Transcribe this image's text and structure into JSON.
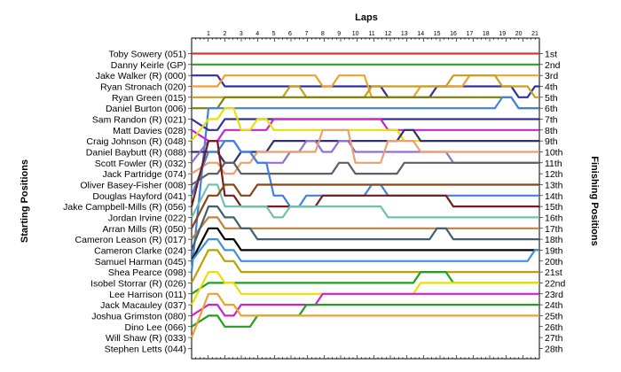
{
  "chart_data": {
    "type": "line",
    "title": "",
    "xlabel": "Laps",
    "ylabel_left": "Starting Positions",
    "ylabel_right": "Finishing Positions",
    "x": [
      1,
      2,
      3,
      4,
      5,
      6,
      7,
      8,
      9,
      10,
      11,
      12,
      13,
      14,
      15,
      16,
      17,
      18,
      19,
      20,
      21
    ],
    "starting_positions": [
      "Toby Sowery (051)",
      "Danny Keirle (GP)",
      "Jake Walker (R) (000)",
      "Ryan Stronach (020)",
      "Ryan Green (015)",
      "Daniel Burton (006)",
      "Sam Randon (R) (021)",
      "Matt Davies (028)",
      "Craig Johnson (R) (048)",
      "Daniel Baybutt (R) (088)",
      "Scott Fowler (R) (032)",
      "Jack Partridge (074)",
      "Oliver Basey-Fisher (008)",
      "Douglas Hayford (041)",
      "Jake Campbell-Mills (R) (056)",
      "Jordan Irvine (022)",
      "Arran Mills (R) (050)",
      "Cameron Leason (R) (017)",
      "Cameron Clarke (024)",
      "Samuel Harman (045)",
      "Shea Pearce (098)",
      "Isobel Storrar (R) (026)",
      "Lee Harrison (011)",
      "Jack Macauley (037)",
      "Joshua Grimston (080)",
      "Dino Lee (066)",
      "Will Shaw (R) (033)",
      "Stephen Letts (044)"
    ],
    "finishing_positions": [
      "1st",
      "2nd",
      "3rd",
      "4th",
      "5th",
      "6th",
      "7th",
      "8th",
      "9th",
      "10th",
      "11th",
      "12th",
      "13th",
      "14th",
      "15th",
      "16th",
      "17th",
      "18th",
      "19th",
      "20th",
      "21st",
      "22nd",
      "23rd",
      "24th",
      "25th",
      "26th",
      "27th",
      "28th"
    ],
    "series": [
      {
        "color": "#e03030",
        "start": 1,
        "positions": [
          1,
          1,
          1,
          1,
          1,
          1,
          1,
          1,
          1,
          1,
          1,
          1,
          1,
          1,
          1,
          1,
          1,
          1,
          1,
          1,
          1
        ]
      },
      {
        "color": "#2ca02c",
        "start": 2,
        "positions": [
          2,
          2,
          2,
          2,
          2,
          2,
          2,
          2,
          2,
          2,
          2,
          2,
          2,
          2,
          2,
          2,
          2,
          2,
          2,
          2,
          2
        ]
      },
      {
        "color": "#30309a",
        "start": 3,
        "positions": [
          3,
          4,
          4,
          4,
          4,
          4,
          4,
          4,
          4,
          4,
          4,
          5,
          5,
          5,
          4,
          4,
          4,
          4,
          4,
          5,
          4
        ]
      },
      {
        "color": "#f0a030",
        "start": 4,
        "positions": [
          4,
          3,
          3,
          3,
          3,
          3,
          3,
          4,
          3,
          3,
          5,
          5,
          5,
          4,
          4,
          4,
          3,
          3,
          3,
          3,
          3
        ]
      },
      {
        "color": "#c7a020",
        "start": 5,
        "positions": [
          5,
          5,
          5,
          5,
          5,
          4,
          5,
          5,
          5,
          5,
          4,
          4,
          4,
          4,
          4,
          3,
          3,
          3,
          4,
          4,
          5
        ]
      },
      {
        "color": "#808000",
        "start": 6,
        "positions": [
          6,
          5,
          5,
          5,
          5,
          5,
          5,
          5,
          5,
          5,
          5,
          5,
          5,
          5,
          5,
          5,
          5,
          5,
          5,
          6,
          6
        ]
      },
      {
        "color": "#4080e0",
        "start": 21,
        "positions": [
          6,
          6,
          6,
          6,
          6,
          6,
          6,
          6,
          6,
          6,
          6,
          6,
          6,
          6,
          6,
          6,
          6,
          6,
          5,
          6,
          6
        ]
      },
      {
        "color": "#30309a",
        "start": 7,
        "positions": [
          8,
          7,
          7,
          7,
          7,
          7,
          7,
          7,
          7,
          7,
          7,
          7,
          7,
          7,
          7,
          7,
          7,
          7,
          7,
          7,
          7
        ]
      },
      {
        "color": "#d020d0",
        "start": 8,
        "positions": [
          9,
          8,
          8,
          8,
          7,
          7,
          7,
          7,
          7,
          7,
          7,
          8,
          8,
          8,
          8,
          8,
          8,
          8,
          8,
          8,
          8
        ]
      },
      {
        "color": "#e8e000",
        "start": 9,
        "positions": [
          7,
          6,
          8,
          7,
          8,
          8,
          8,
          8,
          8,
          8,
          8,
          8,
          9,
          9,
          9,
          9,
          9,
          9,
          9,
          9,
          9
        ]
      },
      {
        "color": "#303070",
        "start": 10,
        "positions": [
          10,
          11,
          10,
          10,
          9,
          9,
          9,
          9,
          9,
          9,
          9,
          9,
          8,
          9,
          9,
          9,
          9,
          9,
          9,
          9,
          9
        ]
      },
      {
        "color": "#9070d0",
        "start": 11,
        "positions": [
          9,
          9,
          10,
          11,
          11,
          10,
          9,
          10,
          9,
          10,
          10,
          10,
          10,
          10,
          10,
          11,
          11,
          11,
          11,
          11,
          11
        ]
      },
      {
        "color": "#e8a070",
        "start": 12,
        "positions": [
          11,
          12,
          11,
          10,
          10,
          10,
          10,
          8,
          8,
          11,
          11,
          9,
          9,
          10,
          10,
          10,
          10,
          10,
          10,
          10,
          10
        ]
      },
      {
        "color": "#606060",
        "start": 13,
        "positions": [
          12,
          11,
          12,
          12,
          12,
          12,
          12,
          12,
          11,
          12,
          12,
          12,
          11,
          11,
          11,
          11,
          11,
          11,
          11,
          11,
          11
        ]
      },
      {
        "color": "#4080e0",
        "start": 14,
        "positions": [
          10,
          9,
          10,
          11,
          14,
          15,
          14,
          14,
          14,
          14,
          13,
          14,
          14,
          14,
          14,
          14,
          14,
          14,
          14,
          14,
          14
        ]
      },
      {
        "color": "#7a1a1a",
        "start": 15,
        "positions": [
          9,
          14,
          15,
          15,
          15,
          15,
          15,
          14,
          14,
          14,
          14,
          14,
          14,
          14,
          14,
          15,
          15,
          15,
          15,
          15,
          15
        ]
      },
      {
        "color": "#70c0b0",
        "start": 16,
        "positions": [
          13,
          15,
          15,
          15,
          16,
          15,
          15,
          15,
          15,
          15,
          15,
          16,
          16,
          16,
          16,
          16,
          16,
          16,
          16,
          16,
          16
        ]
      },
      {
        "color": "#8b4513",
        "start": 17,
        "positions": [
          14,
          13,
          14,
          13,
          13,
          13,
          13,
          13,
          13,
          13,
          13,
          13,
          13,
          13,
          13,
          13,
          13,
          13,
          13,
          13,
          13
        ]
      },
      {
        "color": "#c08040",
        "start": 18,
        "positions": [
          16,
          17,
          17,
          17,
          17,
          17,
          17,
          17,
          17,
          17,
          17,
          17,
          17,
          17,
          17,
          17,
          17,
          17,
          17,
          17,
          17
        ]
      },
      {
        "color": "#406070",
        "start": 19,
        "positions": [
          15,
          16,
          17,
          18,
          18,
          18,
          18,
          18,
          18,
          18,
          18,
          18,
          18,
          18,
          17,
          18,
          18,
          18,
          18,
          18,
          18
        ]
      },
      {
        "color": "#000000",
        "start": 20,
        "positions": [
          17,
          18,
          19,
          19,
          19,
          19,
          19,
          19,
          19,
          19,
          19,
          19,
          19,
          19,
          19,
          19,
          19,
          19,
          19,
          19,
          19
        ]
      },
      {
        "color": "#4090e0",
        "start": 20,
        "positions": [
          18,
          19,
          20,
          20,
          20,
          20,
          20,
          20,
          20,
          20,
          20,
          20,
          20,
          20,
          20,
          20,
          20,
          20,
          20,
          20,
          19
        ]
      },
      {
        "color": "#c0a000",
        "start": 22,
        "positions": [
          19,
          20,
          21,
          21,
          21,
          21,
          21,
          21,
          21,
          21,
          21,
          21,
          21,
          21,
          21,
          21,
          21,
          21,
          21,
          21,
          21
        ]
      },
      {
        "color": "#20a020",
        "start": 23,
        "positions": [
          22,
          22,
          22,
          22,
          22,
          22,
          22,
          22,
          22,
          22,
          22,
          22,
          22,
          21,
          21,
          22,
          22,
          22,
          22,
          22,
          22
        ]
      },
      {
        "color": "#e8e000",
        "start": 24,
        "positions": [
          21,
          22,
          23,
          23,
          23,
          23,
          23,
          23,
          23,
          23,
          23,
          23,
          23,
          22,
          22,
          22,
          22,
          22,
          22,
          22,
          22
        ]
      },
      {
        "color": "#d020d0",
        "start": 25,
        "positions": [
          24,
          25,
          24,
          24,
          24,
          24,
          24,
          23,
          23,
          23,
          23,
          23,
          23,
          23,
          23,
          23,
          23,
          23,
          23,
          23,
          23
        ]
      },
      {
        "color": "#20a020",
        "start": 26,
        "positions": [
          25,
          26,
          26,
          25,
          25,
          25,
          24,
          24,
          24,
          24,
          24,
          24,
          24,
          24,
          24,
          24,
          24,
          24,
          24,
          24,
          24
        ]
      },
      {
        "color": "#f0a030",
        "start": 27,
        "positions": [
          23,
          24,
          25,
          25,
          25,
          25,
          25,
          25,
          25,
          25,
          25,
          25,
          25,
          25,
          25,
          25,
          25,
          25,
          25,
          25,
          25
        ]
      }
    ]
  }
}
